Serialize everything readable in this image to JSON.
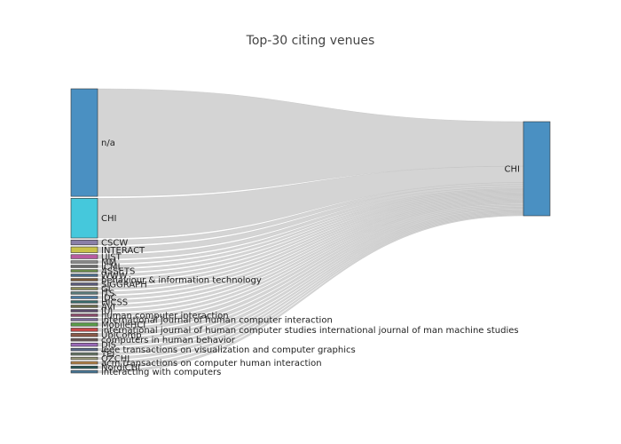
{
  "title": "Top-30 citing venues",
  "target": {
    "label": "CHI",
    "color": "#4a90c2"
  },
  "link_color": "#cccccc",
  "sources": [
    {
      "label": "n/a",
      "value": 130,
      "color": "#4a90c2"
    },
    {
      "label": "CHI",
      "value": 48,
      "color": "#45c8dc"
    },
    {
      "label": "CSCW",
      "value": 6,
      "color": "#8a7fa8"
    },
    {
      "label": "INTERACT",
      "value": 7,
      "color": "#c9c24a"
    },
    {
      "label": "UIST",
      "value": 5,
      "color": "#b85ca0"
    },
    {
      "label": "MM",
      "value": 3,
      "color": "#888888"
    },
    {
      "label": "ICMI",
      "value": 3,
      "color": "#6a6a6a"
    },
    {
      "label": "ASSETS",
      "value": 3,
      "color": "#6a8a4a"
    },
    {
      "label": "WWW",
      "value": 3,
      "color": "#4a6a8a"
    },
    {
      "label": "behaviour & information technology",
      "value": 3,
      "color": "#7a5a3a"
    },
    {
      "label": "SIGGRAPH",
      "value": 3,
      "color": "#5a5a7a"
    },
    {
      "label": "GI",
      "value": 3,
      "color": "#8a8a5a"
    },
    {
      "label": "ITS",
      "value": 3,
      "color": "#5a7a7a"
    },
    {
      "label": "IDC",
      "value": 3,
      "color": "#4a7aa0"
    },
    {
      "label": "HICSS",
      "value": 3,
      "color": "#3a6a6a"
    },
    {
      "label": "AVI",
      "value": 3,
      "color": "#6a6a4a"
    },
    {
      "label": "IUI",
      "value": 3,
      "color": "#5a4a6a"
    },
    {
      "label": "human computer interaction",
      "value": 3,
      "color": "#8a4a6a"
    },
    {
      "label": "international journal of human computer interaction",
      "value": 3,
      "color": "#7a6a9a"
    },
    {
      "label": "MobileHCI",
      "value": 4,
      "color": "#5a9a4a"
    },
    {
      "label": "international journal of human computer studies international journal of man machine studies",
      "value": 4,
      "color": "#c84a4a"
    },
    {
      "label": "UbiComp",
      "value": 4,
      "color": "#8a5a4a"
    },
    {
      "label": "computers in human behavior",
      "value": 3,
      "color": "#6a5a5a"
    },
    {
      "label": "DIS",
      "value": 4,
      "color": "#9a6ab8"
    },
    {
      "label": "ieee transactions on visualization and computer graphics",
      "value": 3,
      "color": "#5a6a8a"
    },
    {
      "label": "TEI",
      "value": 3,
      "color": "#6a7a6a"
    },
    {
      "label": "OZCHI",
      "value": 3,
      "color": "#9a9a7a"
    },
    {
      "label": "acm transactions on computer human interaction",
      "value": 3,
      "color": "#b8864a"
    },
    {
      "label": "NordiCHI",
      "value": 3,
      "color": "#2a5a5a"
    },
    {
      "label": "interacting with computers",
      "value": 3,
      "color": "#4a7a9a"
    }
  ]
}
